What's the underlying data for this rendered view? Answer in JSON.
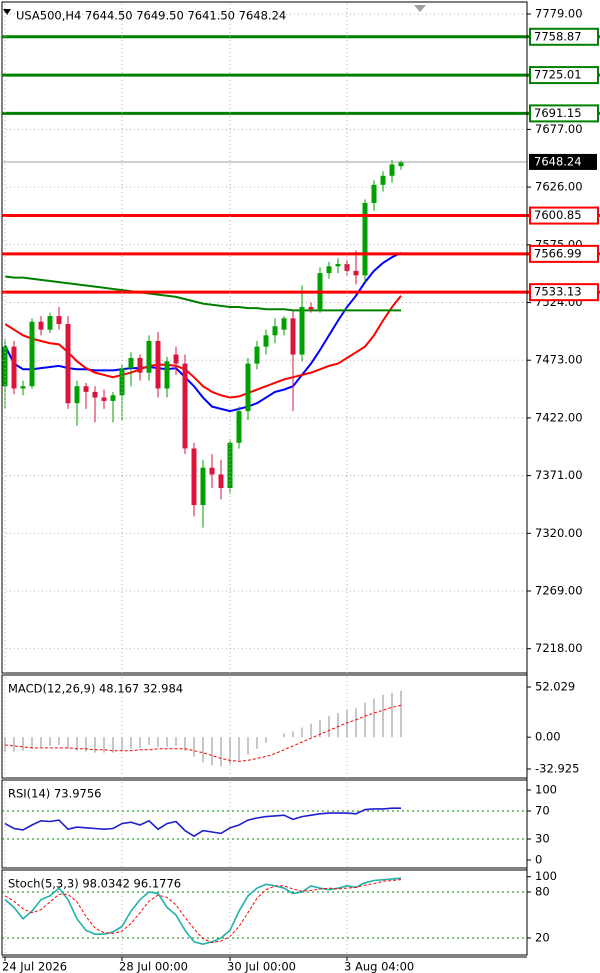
{
  "chart_data": [
    {
      "type": "candlestick",
      "title": "USA500,H4 7644.50 7649.50 7641.50 7648.24",
      "categories": [
        "24 Jul 2026",
        null,
        null,
        null,
        null,
        null,
        null,
        null,
        null,
        null,
        null,
        null,
        null,
        "28 Jul 00:00",
        null,
        null,
        null,
        null,
        null,
        null,
        null,
        null,
        null,
        null,
        null,
        "30 Jul 00:00",
        null,
        null,
        null,
        null,
        null,
        null,
        null,
        null,
        null,
        null,
        null,
        null,
        "3 Aug 04:00",
        null,
        null,
        null,
        null,
        null,
        null
      ],
      "open": [
        7450,
        7485,
        7448,
        7450,
        7507,
        7500,
        7512,
        7505,
        7435,
        7450,
        7445,
        7440,
        7437,
        7442,
        7466,
        7475,
        7462,
        7490,
        7448,
        7478,
        7470,
        7395,
        7345,
        7378,
        7372,
        7360,
        7400,
        7428,
        7470,
        7485,
        7495,
        7500,
        7510,
        7478,
        7520,
        7518,
        7550,
        7556,
        7558,
        7552,
        7548,
        7612,
        7628,
        7636,
        7644.5
      ],
      "high": [
        7492,
        7490,
        7455,
        7510,
        7512,
        7515,
        7520,
        7512,
        7455,
        7453,
        7450,
        7447,
        7445,
        7470,
        7480,
        7478,
        7495,
        7498,
        7476,
        7485,
        7478,
        7400,
        7385,
        7390,
        7385,
        7403,
        7432,
        7475,
        7490,
        7500,
        7510,
        7512,
        7516,
        7539,
        7524,
        7555,
        7560,
        7563,
        7562,
        7570,
        7615,
        7632,
        7640,
        7650,
        7649.5
      ],
      "low": [
        7430,
        7443,
        7442,
        7448,
        7495,
        7497,
        7500,
        7430,
        7415,
        7430,
        7418,
        7430,
        7418,
        7420,
        7450,
        7455,
        7455,
        7440,
        7440,
        7460,
        7390,
        7335,
        7325,
        7360,
        7350,
        7355,
        7395,
        7420,
        7465,
        7478,
        7488,
        7495,
        7428,
        7472,
        7515,
        7515,
        7545,
        7550,
        7548,
        7540,
        7542,
        7605,
        7622,
        7630,
        7641.5
      ],
      "close": [
        7485,
        7448,
        7450,
        7507,
        7500,
        7512,
        7505,
        7435,
        7450,
        7445,
        7440,
        7437,
        7442,
        7466,
        7475,
        7462,
        7490,
        7448,
        7472,
        7470,
        7395,
        7345,
        7378,
        7372,
        7360,
        7400,
        7428,
        7470,
        7485,
        7495,
        7503,
        7510,
        7478,
        7520,
        7518,
        7550,
        7556,
        7558,
        7552,
        7548,
        7612,
        7628,
        7636,
        7646,
        7648.24
      ],
      "up_color": "#00a000",
      "down_color": "#dc143c",
      "series": [
        {
          "color": "#0000ff",
          "values": [
            7486,
            7470,
            7465,
            7465,
            7466,
            7467,
            7468,
            7466,
            7465,
            7465,
            7464,
            7464,
            7464,
            7465,
            7466,
            7466,
            7467,
            7466,
            7465,
            7466,
            7458,
            7450,
            7440,
            7432,
            7430,
            7428,
            7430,
            7432,
            7435,
            7440,
            7445,
            7447,
            7450,
            7460,
            7470,
            7482,
            7495,
            7508,
            7520,
            7530,
            7542,
            7552,
            7559,
            7564,
            7568
          ]
        },
        {
          "color": "#ff0000",
          "values": [
            7505,
            7500,
            7495,
            7492,
            7490,
            7488,
            7487,
            7480,
            7472,
            7466,
            7462,
            7460,
            7458,
            7460,
            7462,
            7465,
            7468,
            7469,
            7469,
            7468,
            7465,
            7458,
            7450,
            7445,
            7442,
            7440,
            7441,
            7444,
            7447,
            7450,
            7453,
            7456,
            7458,
            7460,
            7462,
            7465,
            7468,
            7470,
            7475,
            7480,
            7485,
            7495,
            7508,
            7520,
            7530
          ]
        },
        {
          "color": "#008000",
          "values": [
            7547,
            7546,
            7546,
            7545,
            7544,
            7543,
            7542,
            7541,
            7540,
            7539,
            7538,
            7537,
            7536,
            7535,
            7534,
            7533,
            7532,
            7531,
            7530,
            7529,
            7527,
            7525,
            7523,
            7522,
            7521,
            7520,
            7520,
            7519,
            7519,
            7518,
            7518,
            7518,
            7517,
            7517,
            7517,
            7517,
            7517,
            7517,
            7517,
            7517,
            7517,
            7517,
            7517,
            7517,
            7517
          ]
        }
      ],
      "hlines": [
        {
          "value": 7758.87,
          "color": "#008000"
        },
        {
          "value": 7725.01,
          "color": "#008000"
        },
        {
          "value": 7691.15,
          "color": "#008000"
        },
        {
          "value": 7600.85,
          "color": "#ff0000"
        },
        {
          "value": 7566.99,
          "color": "#ff0000"
        },
        {
          "value": 7533.13,
          "color": "#ff0000"
        }
      ],
      "last_price": 7648.24,
      "ylim": [
        7196.53,
        7787.84
      ],
      "yticks": [
        {
          "value": 7779,
          "label": "7779.00"
        },
        {
          "value": 7677,
          "label": "7677.00"
        },
        {
          "value": 7626,
          "label": "7626.00"
        },
        {
          "value": 7575,
          "label": "7575.00"
        },
        {
          "value": 7524,
          "label": "7524.00"
        },
        {
          "value": 7473,
          "label": "7473.00"
        },
        {
          "value": 7422,
          "label": "7422.00"
        },
        {
          "value": 7371,
          "label": "7371.00"
        },
        {
          "value": 7320,
          "label": "7320.00"
        },
        {
          "value": 7269,
          "label": "7269.00"
        },
        {
          "value": 7218,
          "label": "7218.00"
        }
      ],
      "grid": true
    },
    {
      "type": "macd",
      "title": "MACD(12,26,9) 48.167 32.984",
      "series": [
        {
          "style": "histogram",
          "color": "#b4b4b4",
          "values": [
            -15,
            -15,
            -14,
            -12,
            -10,
            -9,
            -8,
            -12,
            -14,
            -15,
            -16,
            -16,
            -16,
            -14,
            -12,
            -11,
            -8,
            -10,
            -10,
            -9,
            -14,
            -20,
            -26,
            -29,
            -30,
            -28,
            -24,
            -18,
            -12,
            -6,
            0,
            4,
            6,
            10,
            14,
            18,
            22,
            25,
            28,
            30,
            36,
            40,
            44,
            46,
            48.167
          ]
        },
        {
          "style": "dashed",
          "color": "#ff0000",
          "values": [
            -8,
            -9,
            -10,
            -11,
            -11,
            -11,
            -11,
            -11,
            -12,
            -12,
            -13,
            -13,
            -14,
            -14,
            -14,
            -13,
            -13,
            -12,
            -12,
            -12,
            -12,
            -14,
            -16,
            -19,
            -22,
            -24,
            -25,
            -24,
            -22,
            -20,
            -17,
            -13,
            -9,
            -5,
            -1,
            3,
            7,
            11,
            15,
            18,
            22,
            25,
            28,
            31,
            32.984
          ]
        }
      ],
      "ylim": [
        -42.25,
        62.39
      ],
      "yticks": [
        52.029,
        {
          "value": 0,
          "label": "0.00"
        },
        -32.925
      ]
    },
    {
      "type": "line",
      "title": "RSI(14) 73.9756",
      "series": [
        {
          "style": "line",
          "color": "#1f1fd0",
          "values": [
            52,
            45,
            43,
            50,
            56,
            55,
            57,
            44,
            47,
            46,
            45,
            44,
            45,
            52,
            54,
            50,
            56,
            44,
            52,
            55,
            42,
            34,
            42,
            40,
            38,
            46,
            50,
            57,
            60,
            62,
            63,
            64,
            58,
            62,
            64,
            66,
            67,
            67,
            67,
            66,
            72,
            73,
            73,
            74,
            73.9756
          ]
        }
      ],
      "ylim": [
        -11.4,
        111.4
      ],
      "yticks": [
        100,
        70,
        30,
        0
      ],
      "levels": [
        70,
        30
      ]
    },
    {
      "type": "line",
      "title": "Stoch(5,3,3) 98.0342 96.1776",
      "series": [
        {
          "style": "line",
          "color": "#20b2aa",
          "values": [
            70,
            60,
            45,
            55,
            70,
            75,
            85,
            70,
            45,
            30,
            25,
            25,
            28,
            35,
            55,
            70,
            80,
            78,
            60,
            50,
            30,
            15,
            12,
            15,
            20,
            30,
            55,
            75,
            85,
            90,
            88,
            85,
            78,
            80,
            88,
            85,
            83,
            85,
            88,
            86,
            92,
            95,
            96,
            97,
            98.0342
          ]
        },
        {
          "style": "dashed",
          "color": "#ff0000",
          "values": [
            75,
            68,
            58,
            53,
            57,
            67,
            77,
            77,
            67,
            48,
            33,
            27,
            26,
            29,
            39,
            53,
            68,
            76,
            73,
            63,
            47,
            32,
            19,
            14,
            16,
            22,
            35,
            53,
            72,
            83,
            88,
            88,
            84,
            81,
            82,
            84,
            85,
            84,
            85,
            86,
            89,
            91,
            94,
            95,
            96.1776
          ]
        }
      ],
      "ylim": [
        -2.2,
        106.1
      ],
      "yticks": [
        100,
        80,
        20
      ],
      "levels": [
        80,
        20
      ]
    }
  ]
}
